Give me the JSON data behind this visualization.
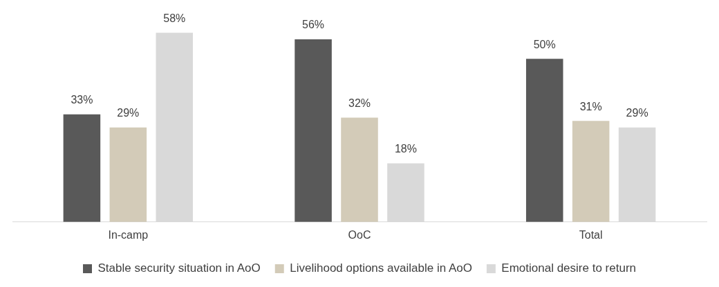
{
  "chart_data": {
    "type": "bar",
    "categories": [
      "In-camp",
      "OoC",
      "Total"
    ],
    "series": [
      {
        "name": "Stable security situation in AoO",
        "color": "#595959",
        "values": [
          33,
          56,
          50
        ],
        "value_labels": [
          "33%",
          "56%",
          "50%"
        ]
      },
      {
        "name": "Livelihood options available in AoO",
        "color": "#d3cbb8",
        "values": [
          29,
          32,
          31
        ],
        "value_labels": [
          "29%",
          "32%",
          "31%"
        ]
      },
      {
        "name": "Emotional desire to return",
        "color": "#d9d9d9",
        "values": [
          58,
          18,
          29
        ],
        "value_labels": [
          "58%",
          "18%",
          "29%"
        ]
      }
    ],
    "legend": "bottom",
    "grid": false
  }
}
